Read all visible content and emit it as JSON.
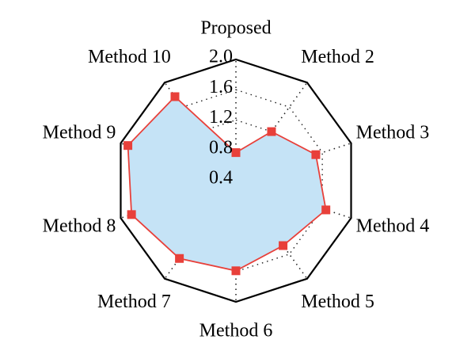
{
  "chart_data": {
    "type": "radar",
    "categories": [
      "Proposed",
      "Method 2",
      "Method 3",
      "Method 4",
      "Method 5",
      "Method 6",
      "Method 7",
      "Method 8",
      "Method 9",
      "Method 10"
    ],
    "series": [
      {
        "color": "#e8403a",
        "fill": "#c5e3f6",
        "values": [
          0.77,
          1.2,
          1.51,
          1.65,
          1.46,
          1.59,
          1.67,
          1.85,
          1.9,
          1.77
        ]
      }
    ],
    "ylim": [
      0.4,
      2.0
    ],
    "yticks": [
      0.4,
      0.8,
      1.2,
      1.6,
      2.0
    ],
    "grid": true
  }
}
